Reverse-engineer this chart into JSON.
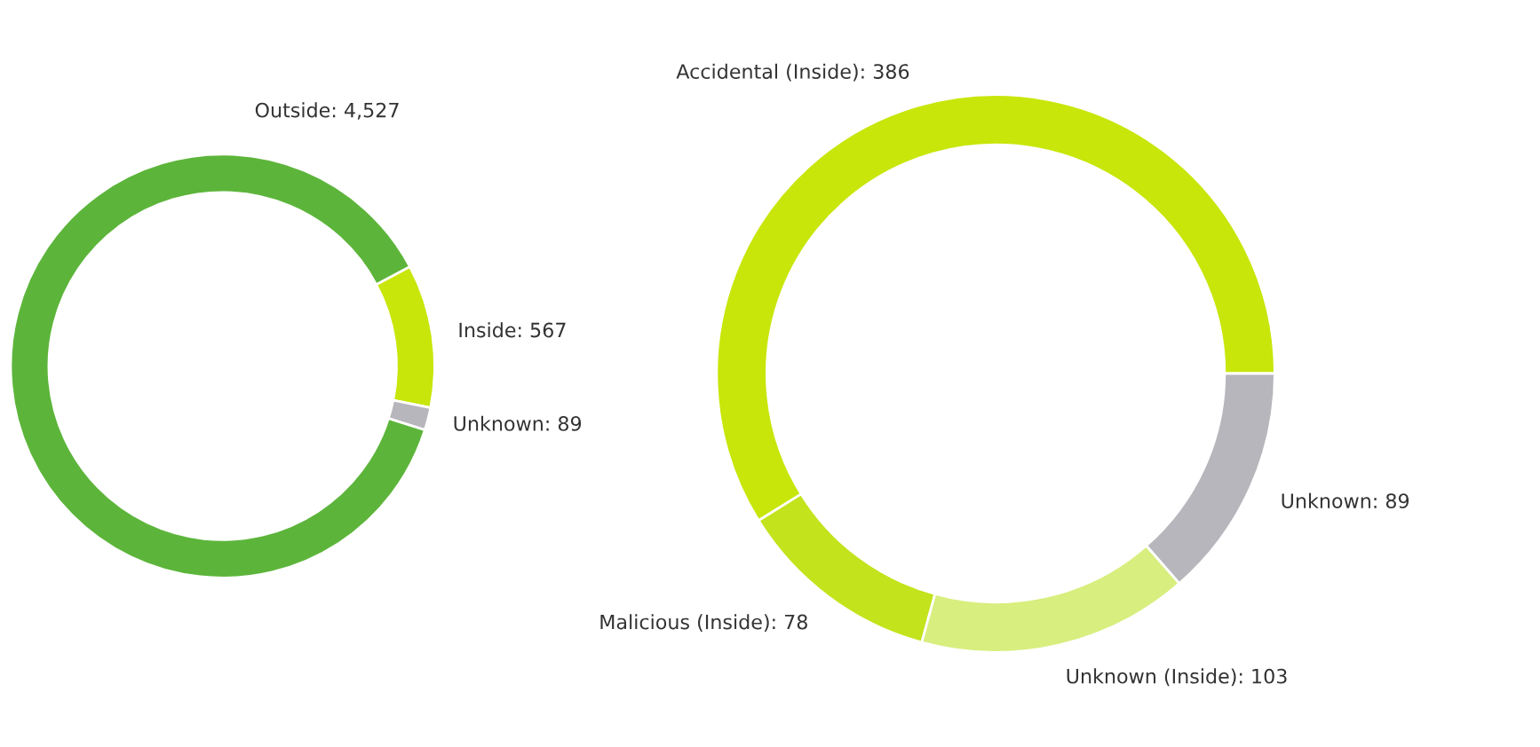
{
  "chart_data": [
    {
      "type": "donut",
      "categories": [
        "Inside",
        "Unknown",
        "Outside"
      ],
      "values": [
        567,
        89,
        4527
      ],
      "colors": [
        "#c8e60a",
        "#b6b6bc",
        "#5cb53a"
      ],
      "value_labels": [
        "567",
        "89",
        "4,527"
      ]
    },
    {
      "type": "donut",
      "categories": [
        "Accidental (Inside)",
        "Malicious (Inside)",
        "Unknown (Inside)",
        "Unknown"
      ],
      "values": [
        386,
        78,
        103,
        89
      ],
      "colors": [
        "#c8e60a",
        "#c3e31c",
        "#d8ee7e",
        "#b6b6bc"
      ],
      "value_labels": [
        "386",
        "78",
        "103",
        "89"
      ]
    }
  ]
}
